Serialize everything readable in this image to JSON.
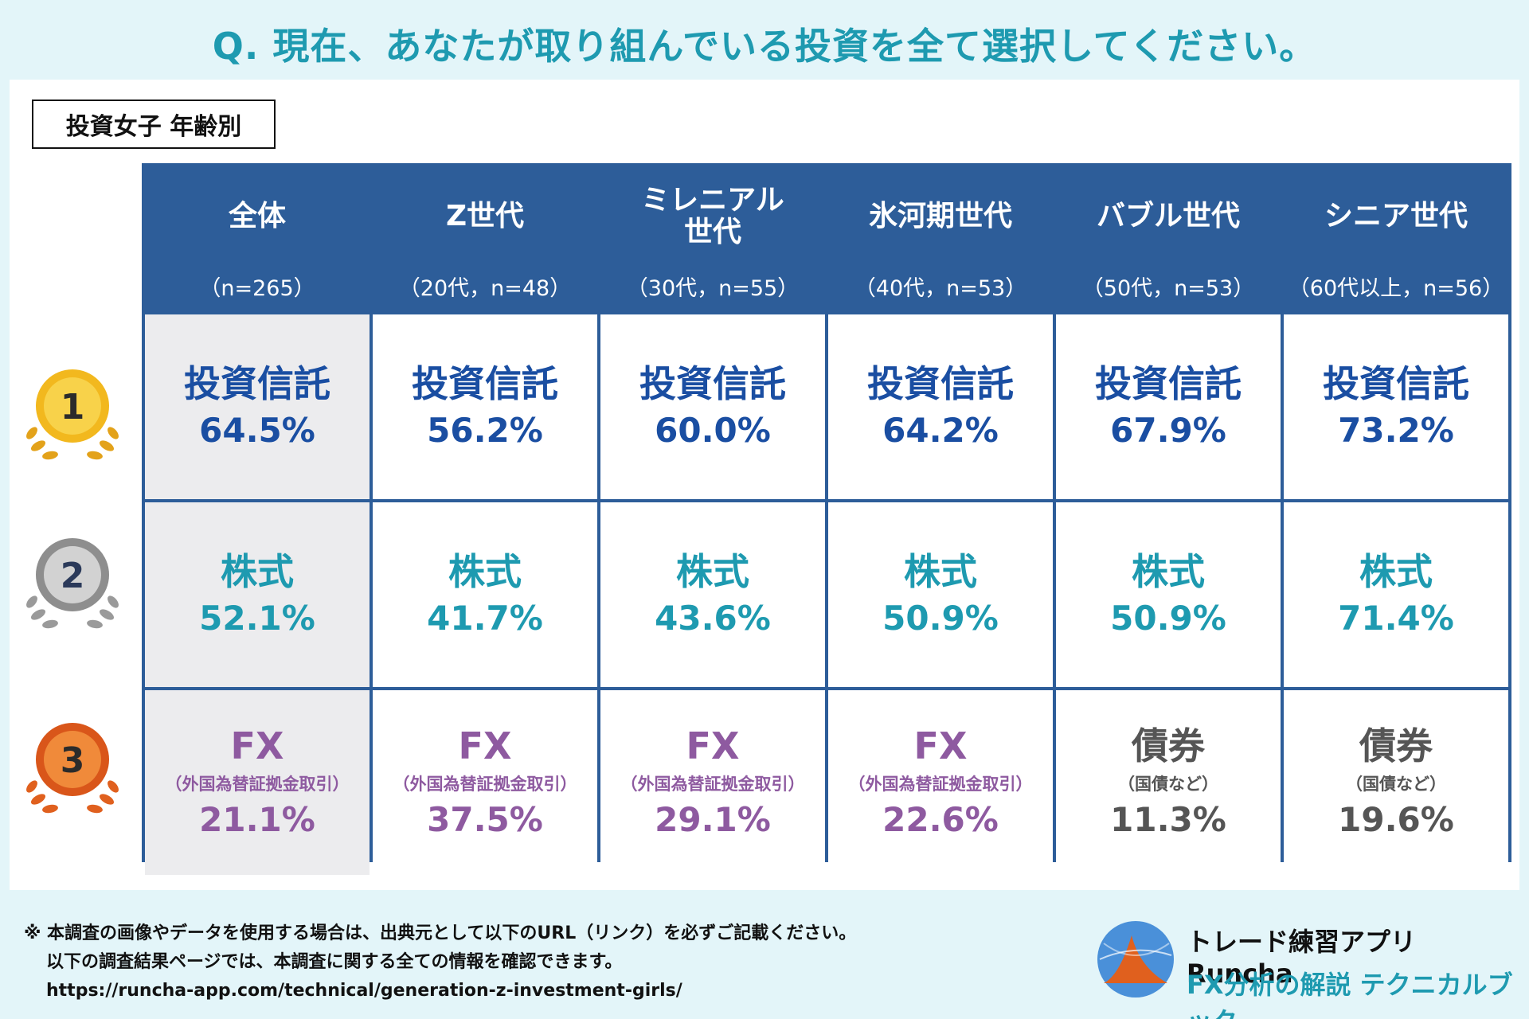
{
  "title": "Q. 現在、あなたが取り組んでいる投資を全て選択してください。",
  "subtitle_tag": "投資女子 年齢別",
  "colors": {
    "header": "#2d5d99",
    "rank1": "#1a4ea2",
    "rank2": "#1e9ab0",
    "rank3": "#8e5aa0",
    "bond": "#555555"
  },
  "chart_data": {
    "type": "table",
    "title": "投資女子 年齢別",
    "columns": [
      {
        "name": "全体",
        "sub": "（n=265）"
      },
      {
        "name": "Z世代",
        "sub": "（20代，n=48）"
      },
      {
        "name": "ミレニアル世代",
        "sub": "（30代，n=55）"
      },
      {
        "name": "氷河期世代",
        "sub": "（40代，n=53）"
      },
      {
        "name": "バブル世代",
        "sub": "（50代，n=53）"
      },
      {
        "name": "シニア世代",
        "sub": "（60代以上，n=56）"
      }
    ],
    "ranks": [
      {
        "rank": "1",
        "cells": [
          {
            "name": "投資信託",
            "note": "",
            "value": "64.5%"
          },
          {
            "name": "投資信託",
            "note": "",
            "value": "56.2%"
          },
          {
            "name": "投資信託",
            "note": "",
            "value": "60.0%"
          },
          {
            "name": "投資信託",
            "note": "",
            "value": "64.2%"
          },
          {
            "name": "投資信託",
            "note": "",
            "value": "67.9%"
          },
          {
            "name": "投資信託",
            "note": "",
            "value": "73.2%"
          }
        ]
      },
      {
        "rank": "2",
        "cells": [
          {
            "name": "株式",
            "note": "",
            "value": "52.1%"
          },
          {
            "name": "株式",
            "note": "",
            "value": "41.7%"
          },
          {
            "name": "株式",
            "note": "",
            "value": "43.6%"
          },
          {
            "name": "株式",
            "note": "",
            "value": "50.9%"
          },
          {
            "name": "株式",
            "note": "",
            "value": "50.9%"
          },
          {
            "name": "株式",
            "note": "",
            "value": "71.4%"
          }
        ]
      },
      {
        "rank": "3",
        "cells": [
          {
            "name": "FX",
            "note": "（外国為替証拠金取引）",
            "value": "21.1%"
          },
          {
            "name": "FX",
            "note": "（外国為替証拠金取引）",
            "value": "37.5%"
          },
          {
            "name": "FX",
            "note": "（外国為替証拠金取引）",
            "value": "29.1%"
          },
          {
            "name": "FX",
            "note": "（外国為替証拠金取引）",
            "value": "22.6%"
          },
          {
            "name": "債券",
            "note": "（国債など）",
            "value": "11.3%"
          },
          {
            "name": "債券",
            "note": "（国債など）",
            "value": "19.6%"
          }
        ]
      }
    ]
  },
  "footnote": {
    "line1": "※ 本調査の画像やデータを使用する場合は、出典元として以下のURL（リンク）を必ずご記載ください。",
    "line2": "以下の調査結果ページでは、本調査に関する全ての情報を確認できます。",
    "url": "https://runcha-app.com/technical/generation-z-investment-girls/"
  },
  "brand": {
    "name": "トレード練習アプリ Runcha",
    "tagline": "FX分析の解説 テクニカルブック"
  }
}
